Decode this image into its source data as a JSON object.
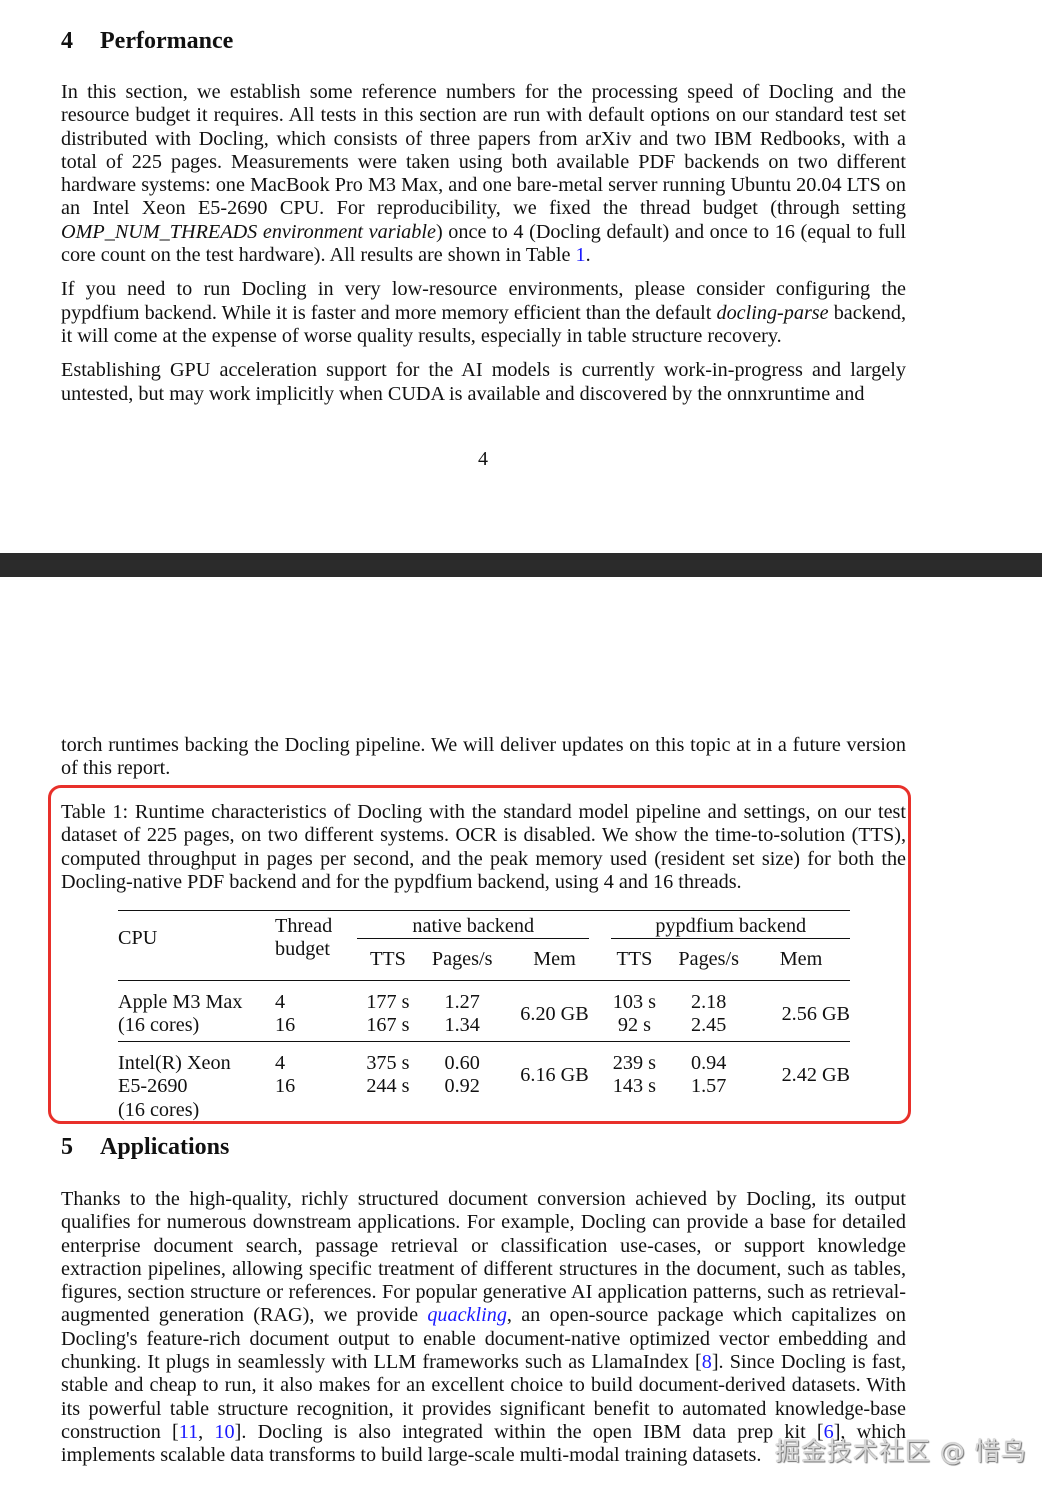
{
  "page1": {
    "section_number": "4",
    "section_title": "Performance",
    "paragraphs": [
      [
        {
          "t": "In this section, we establish some reference numbers for the processing speed of Docling and the resource budget it requires. All tests in this section are run with default options on our standard test set distributed with Docling, which consists of three papers from arXiv and two IBM Redbooks, with a total of 225 pages. Measurements were taken using both available PDF backends on two different hardware systems: one MacBook Pro M3 Max, and one bare-metal server running Ubuntu 20.04 LTS on an Intel Xeon E5-2690 CPU. For reproducibility, we fixed the thread budget (through setting "
        },
        {
          "t": "OMP_NUM_THREADS environment variable",
          "s": "it"
        },
        {
          "t": ") once to 4 (Docling default) and once to 16 (equal to full core count on the test hardware). All results are shown in Table "
        },
        {
          "t": "1",
          "s": "link"
        },
        {
          "t": "."
        }
      ],
      [
        {
          "t": "If you need to run Docling in very low-resource environments, please consider configuring the pypdfium backend. While it is faster and more memory efficient than the default "
        },
        {
          "t": "docling-parse",
          "s": "it"
        },
        {
          "t": " backend, it will come at the expense of worse quality results, especially in table structure recovery."
        }
      ],
      [
        {
          "t": "Establishing GPU acceleration support for the AI models is currently work-in-progress and largely untested, but may work implicitly when CUDA is available and discovered by the onnxruntime and"
        }
      ]
    ],
    "page_number": "4"
  },
  "page2": {
    "continuation": [
      [
        {
          "t": "torch runtimes backing the Docling pipeline. We will deliver updates on this topic at in a future version of this report."
        }
      ]
    ],
    "table_caption": "Table 1: Runtime characteristics of Docling with the standard model pipeline and settings, on our test dataset of 225 pages, on two different systems. OCR is disabled. We show the time-to-solution (TTS), computed throughput in pages per second, and the peak memory used (resident set size) for both the Docling-native PDF backend and for the pypdfium backend, using 4 and 16 threads.",
    "table": {
      "headers": {
        "cpu": "CPU",
        "thread_budget": [
          "Thread",
          "budget"
        ],
        "native_backend": "native backend",
        "pypdfium_backend": "pypdfium backend",
        "sub": [
          "TTS",
          "Pages/s",
          "Mem",
          "TTS",
          "Pages/s",
          "Mem"
        ]
      },
      "rows": [
        {
          "cpu": [
            "Apple M3 Max",
            "(16 cores)"
          ],
          "threads": [
            "4",
            "16"
          ],
          "native_tts": [
            "177 s",
            "167 s"
          ],
          "native_pps": [
            "1.27",
            "1.34"
          ],
          "native_mem": "6.20 GB",
          "py_tts": [
            "103 s",
            "92 s"
          ],
          "py_pps": [
            "2.18",
            "2.45"
          ],
          "py_mem": "2.56 GB"
        },
        {
          "cpu": [
            "Intel(R) Xeon",
            "E5-2690",
            "(16 cores)"
          ],
          "threads": [
            "4",
            "16"
          ],
          "native_tts": [
            "375 s",
            "244 s"
          ],
          "native_pps": [
            "0.60",
            "0.92"
          ],
          "native_mem": "6.16 GB",
          "py_tts": [
            "239 s",
            "143 s"
          ],
          "py_pps": [
            "0.94",
            "1.57"
          ],
          "py_mem": "2.42 GB"
        }
      ]
    },
    "section_number": "5",
    "section_title": "Applications",
    "paragraphs": [
      [
        {
          "t": "Thanks to the high-quality, richly structured document conversion achieved by Docling, its output qualifies for numerous downstream applications. For example, Docling can provide a base for detailed enterprise document search, passage retrieval or classification use-cases, or support knowledge extraction pipelines, allowing specific treatment of different structures in the document, such as tables, figures, section structure or references. For popular generative AI application patterns, such as retrieval-augmented generation (RAG), we provide "
        },
        {
          "t": "quackling",
          "s": "link it"
        },
        {
          "t": ", an open-source package which capitalizes on Docling's feature-rich document output to enable document-native optimized vector embedding and chunking. It plugs in seamlessly with LLM frameworks such as LlamaIndex ["
        },
        {
          "t": "8",
          "s": "link"
        },
        {
          "t": "]. Since Docling is fast, stable and cheap to run, it also makes for an excellent choice to build document-derived datasets. With its powerful table structure recognition, it provides significant benefit to automated knowledge-base construction ["
        },
        {
          "t": "11",
          "s": "link"
        },
        {
          "t": ", "
        },
        {
          "t": "10",
          "s": "link"
        },
        {
          "t": "]. Docling is also integrated within the open IBM data prep kit ["
        },
        {
          "t": "6",
          "s": "link"
        },
        {
          "t": "], which implements scalable data transforms to build large-scale multi-modal training datasets."
        }
      ]
    ]
  },
  "watermark": "掘金技术社区 @ 惜鸟",
  "colors": {
    "link": "#1a1aff",
    "highlight_box": "#e8302a",
    "page_gap": "#2b2b2b"
  }
}
